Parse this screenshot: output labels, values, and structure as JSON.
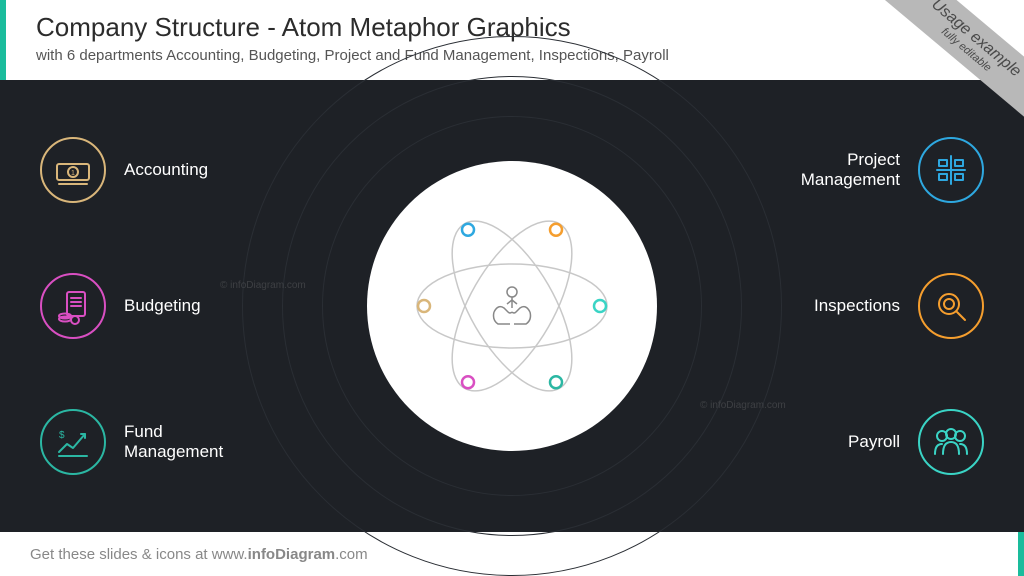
{
  "header": {
    "title": "Company Structure - Atom Metaphor Graphics",
    "subtitle": "with 6 departments Accounting, Budgeting, Project and Fund Management, Inspections, Payroll",
    "accent_color": "#1abc9c",
    "title_color": "#2c2c2c",
    "subtitle_color": "#555555"
  },
  "ribbon": {
    "main": "Usage example",
    "sub": "fully editable",
    "bg": "#b8b8b8",
    "text_color": "#4a4a4a"
  },
  "canvas": {
    "bg": "#1e2126",
    "ring_color": "#2a2e34",
    "ring_sizes": [
      540,
      460,
      380
    ],
    "center_circle": {
      "size": 290,
      "bg": "#ffffff"
    },
    "atom": {
      "ellipse_stroke": "#c8c8c8",
      "center_icon_stroke": "#888888",
      "nodes": [
        {
          "color": "#d9b67a",
          "angle": -90
        },
        {
          "color": "#2ea8e0",
          "angle": -30
        },
        {
          "color": "#f59e2e",
          "angle": 30
        },
        {
          "color": "#3ad4c5",
          "angle": 90
        },
        {
          "color": "#2bb7a3",
          "angle": 150
        },
        {
          "color": "#d94fc2",
          "angle": 210
        }
      ]
    }
  },
  "departments": {
    "left": [
      {
        "label": "Accounting",
        "color": "#d9b67a",
        "icon": "money-bill-icon"
      },
      {
        "label": "Budgeting",
        "color": "#d94fc2",
        "icon": "document-coins-icon"
      },
      {
        "label": "Fund Management",
        "color": "#2bb7a3",
        "icon": "chart-growth-icon"
      }
    ],
    "right": [
      {
        "label": "Project Management",
        "color": "#2ea8e0",
        "icon": "gantt-icon"
      },
      {
        "label": "Inspections",
        "color": "#f59e2e",
        "icon": "magnifier-icon"
      },
      {
        "label": "Payroll",
        "color": "#3ad4c5",
        "icon": "people-icon"
      }
    ],
    "label_color": "#ffffff"
  },
  "footer": {
    "prefix": "Get these slides & icons at ",
    "brand_prefix": "www.",
    "brand_bold": "infoDiagram",
    "brand_suffix": ".com",
    "text_color": "#888888",
    "accent_color": "#1abc9c"
  },
  "watermark": {
    "text": "© infoDiagram.com",
    "color": "#999999"
  }
}
